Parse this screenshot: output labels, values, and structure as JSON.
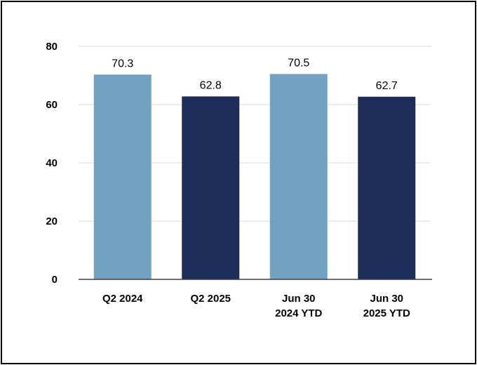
{
  "chart_data": {
    "type": "bar",
    "categories": [
      [
        "Q2 2024"
      ],
      [
        "Q2 2025"
      ],
      [
        "Jun 30",
        "2024 YTD"
      ],
      [
        "Jun 30",
        "2025 YTD"
      ]
    ],
    "values": [
      70.3,
      62.8,
      70.5,
      62.7
    ],
    "value_labels": [
      "70.3",
      "62.8",
      "70.5",
      "62.7"
    ],
    "bar_colors": [
      "#72a2c2",
      "#1c2d5a",
      "#72a2c2",
      "#1c2d5a"
    ],
    "ylim": [
      0,
      80
    ],
    "yticks": [
      0,
      20,
      40,
      60,
      80
    ],
    "grid": true,
    "gridline_color": "#d9d9d9",
    "axis_color": "#404040",
    "title": "",
    "xlabel": "",
    "ylabel": ""
  }
}
